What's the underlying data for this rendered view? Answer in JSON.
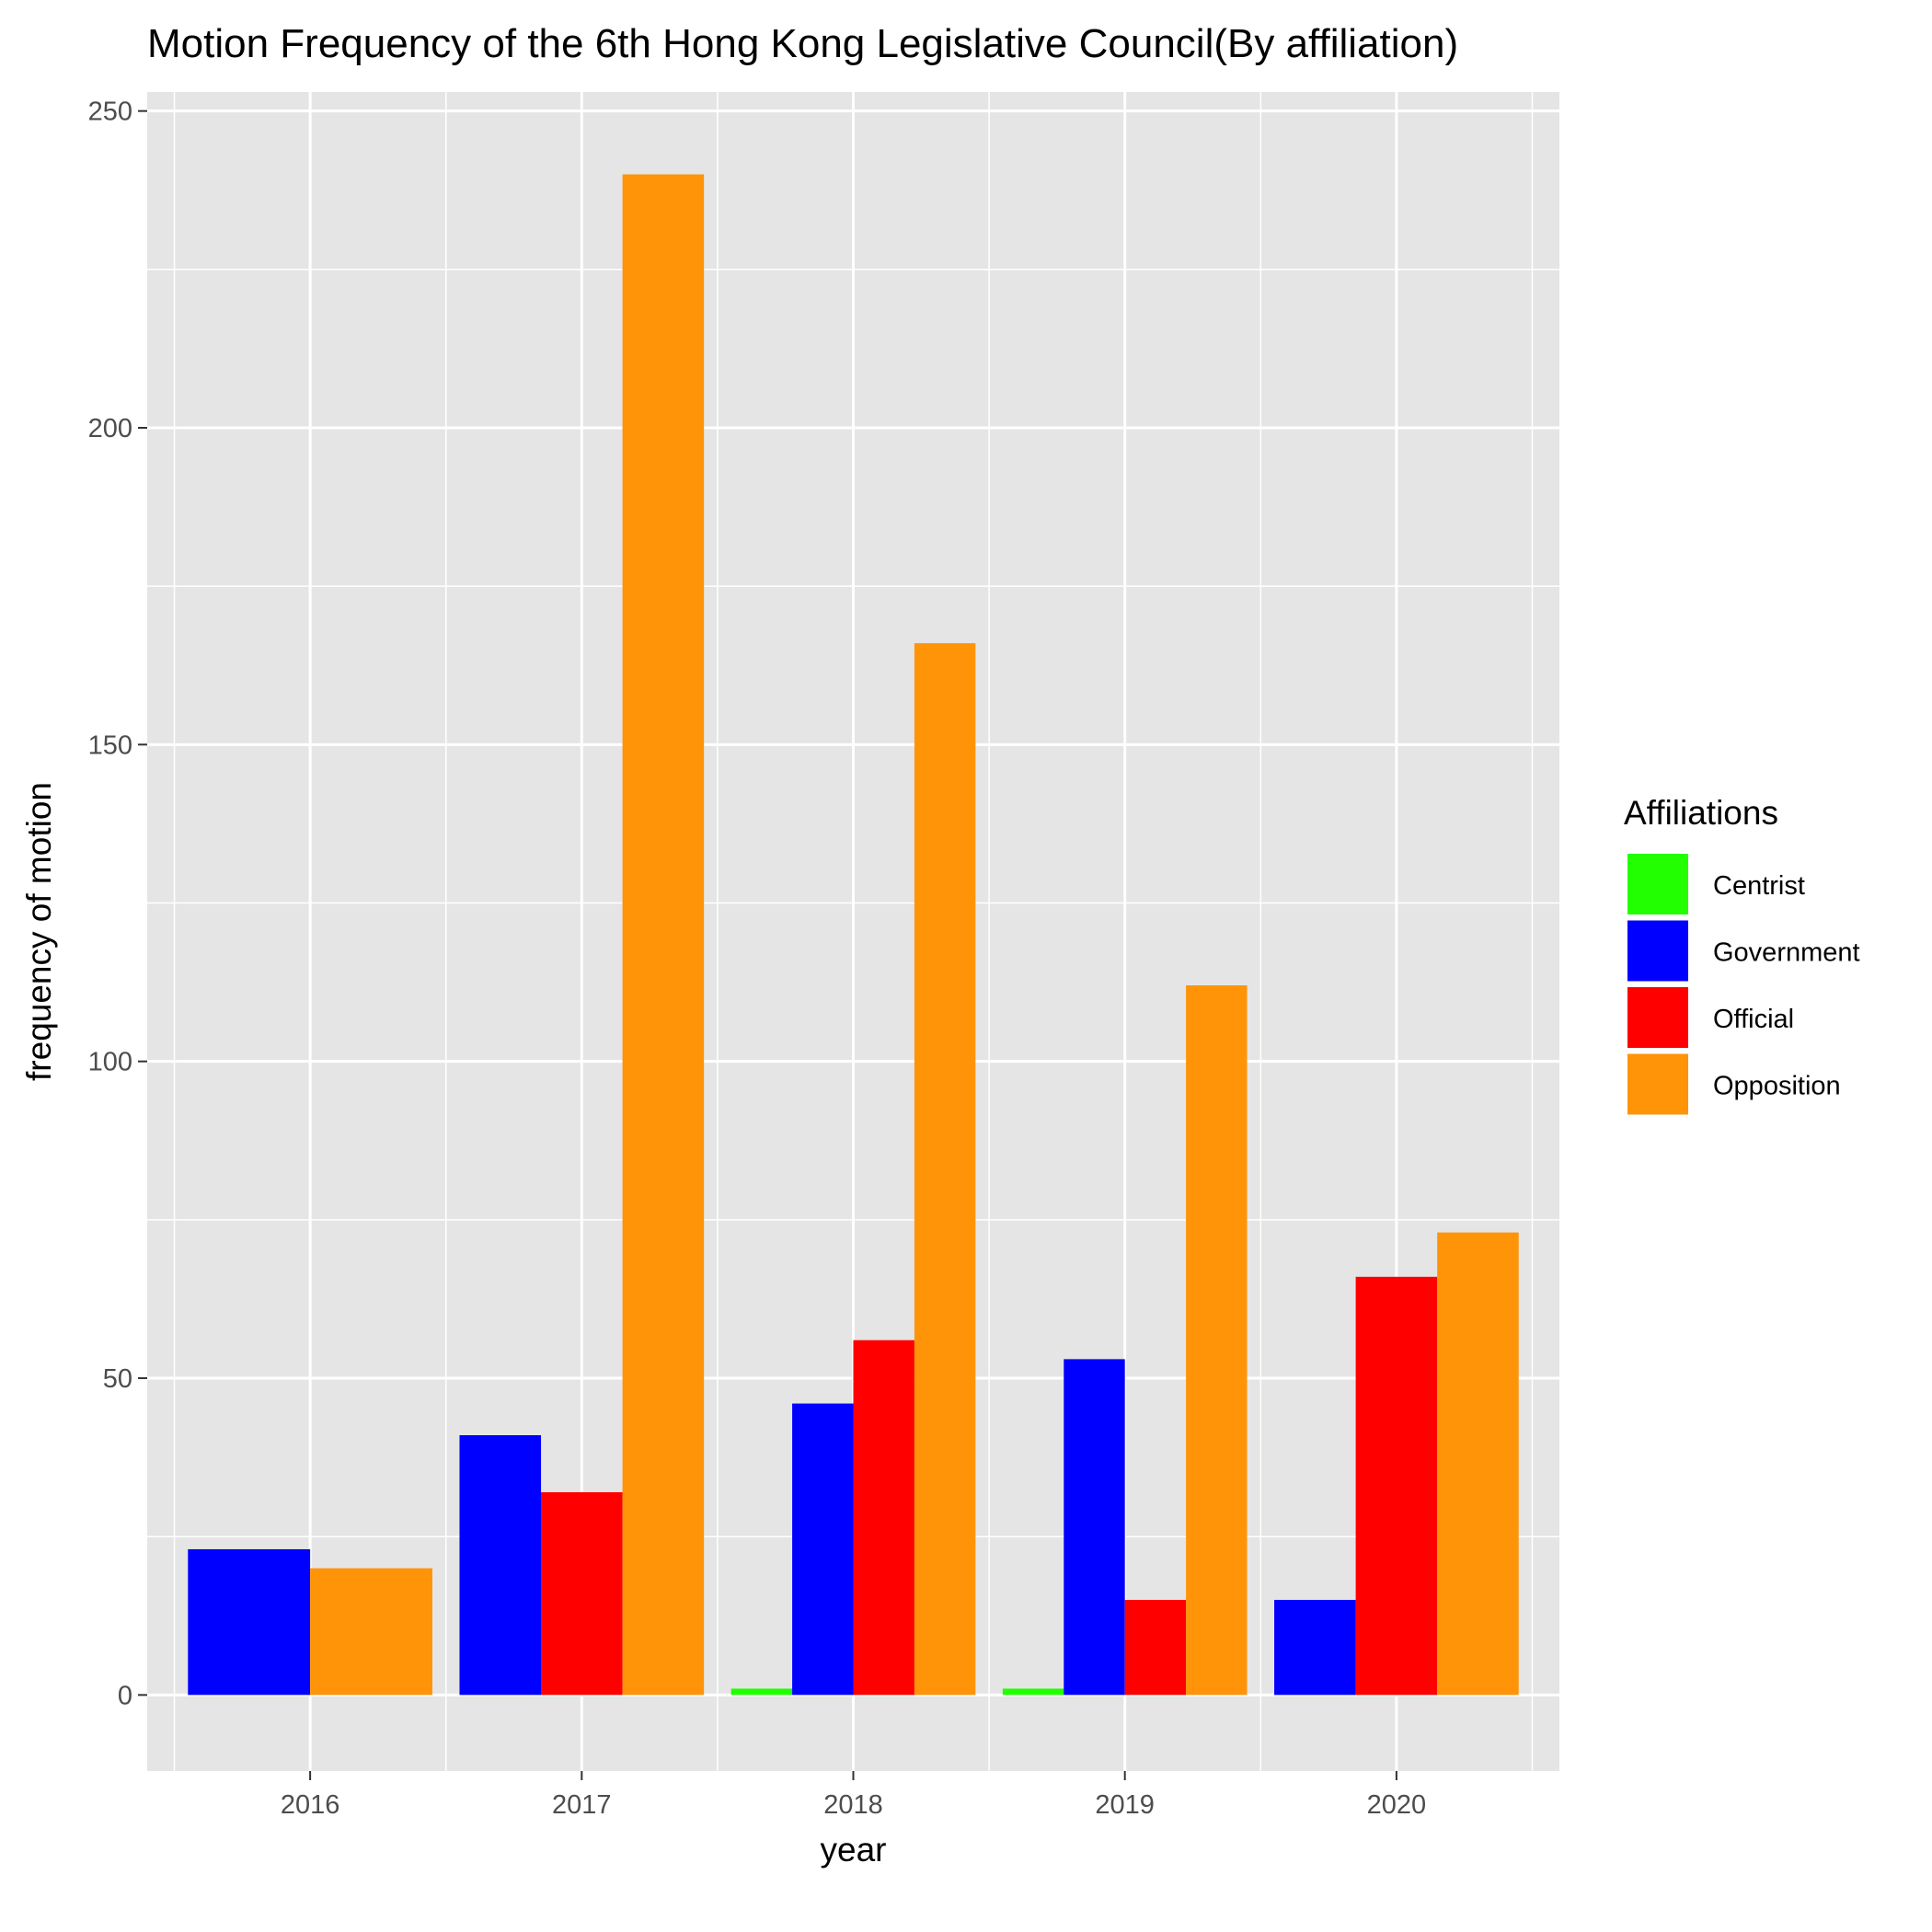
{
  "chart_data": {
    "type": "bar",
    "title": "Motion Frequency of the 6th Hong Kong Legislative Council(By affiliation)",
    "xlabel": "year",
    "ylabel": "frequency of motion",
    "ylim": [
      -12,
      253
    ],
    "yticks": [
      0,
      50,
      100,
      150,
      200,
      250
    ],
    "categories": [
      "2016",
      "2017",
      "2018",
      "2019",
      "2020"
    ],
    "grid": true,
    "legend": {
      "title": "Affiliations",
      "position": "right"
    },
    "series": [
      {
        "name": "Centrist",
        "color": "#22ff00",
        "values": [
          null,
          null,
          1,
          1,
          null
        ]
      },
      {
        "name": "Government",
        "color": "#0000ff",
        "values": [
          23,
          41,
          46,
          53,
          15
        ]
      },
      {
        "name": "Official",
        "color": "#ff0000",
        "values": [
          null,
          32,
          56,
          15,
          66
        ]
      },
      {
        "name": "Opposition",
        "color": "#ff9408",
        "values": [
          20,
          240,
          166,
          112,
          73
        ]
      }
    ]
  }
}
